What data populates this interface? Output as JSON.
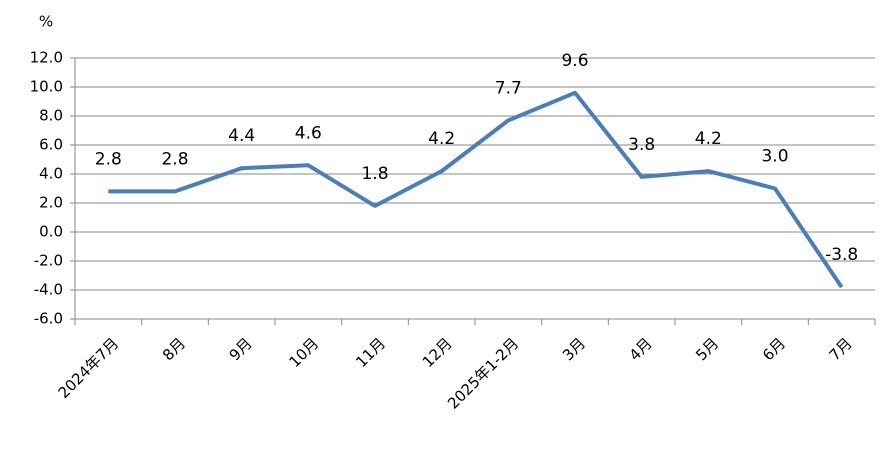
{
  "chart_data": {
    "type": "line",
    "y_label": "%",
    "categories": [
      "2024年7月",
      "8月",
      "9月",
      "10月",
      "11月",
      "12月",
      "2025年1-2月",
      "3月",
      "4月",
      "5月",
      "6月",
      "7月"
    ],
    "series": [
      {
        "color": "#4a7ebb",
        "values": [
          2.8,
          2.8,
          4.4,
          4.6,
          1.8,
          4.2,
          7.7,
          9.6,
          3.8,
          4.2,
          3.0,
          -3.8
        ],
        "value_labels": [
          "2.8",
          "2.8",
          "4.4",
          "4.6",
          "1.8",
          "4.2",
          "7.7",
          "9.6",
          "3.8",
          "4.2",
          "3.0",
          "-3.8"
        ]
      }
    ],
    "ylim": [
      -6,
      12
    ],
    "yticks": [
      {
        "value": -6,
        "label": "-6.0"
      },
      {
        "value": -4,
        "label": "-4.0"
      },
      {
        "value": -2,
        "label": "-2.0"
      },
      {
        "value": 0,
        "label": "0.0"
      },
      {
        "value": 2,
        "label": "2.0"
      },
      {
        "value": 4,
        "label": "4.0"
      },
      {
        "value": 6,
        "label": "6.0"
      },
      {
        "value": 8,
        "label": "8.0"
      },
      {
        "value": 10,
        "label": "10.0"
      },
      {
        "value": 12,
        "label": "12.0"
      }
    ],
    "grid": true
  }
}
